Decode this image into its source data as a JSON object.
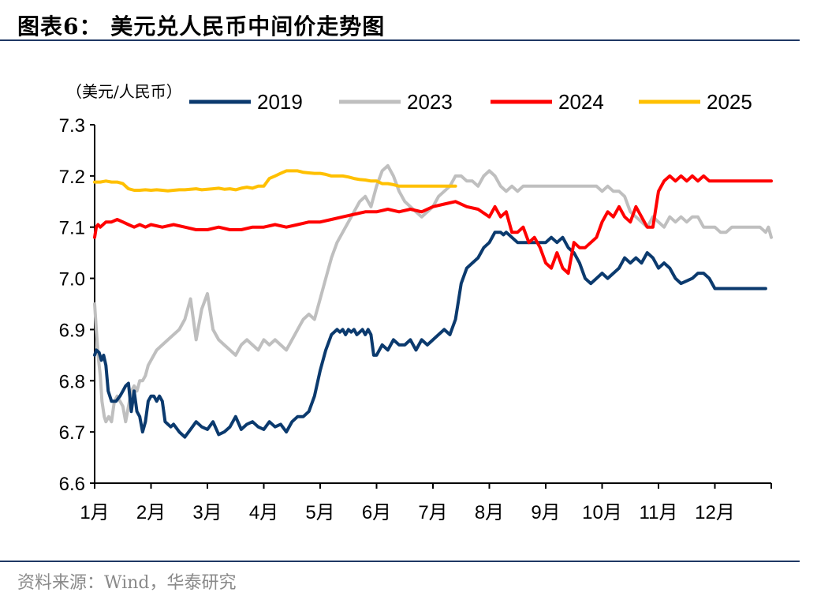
{
  "header": {
    "title": "图表6：   美元兑人民币中间价走势图"
  },
  "footer": {
    "source": "资料来源：Wind，华泰研究"
  },
  "colors": {
    "rule": "#1f3864",
    "axis": "#000000"
  },
  "chart_data": {
    "type": "line",
    "title": "图表6：   美元兑人民币中间价走势图",
    "ylabel": "（美元/人民币）",
    "ylim": [
      6.6,
      7.3
    ],
    "yticks": [
      "6.6",
      "6.7",
      "6.8",
      "6.9",
      "7.0",
      "7.1",
      "7.2",
      "7.3"
    ],
    "xlim": [
      0,
      12
    ],
    "xticks": [
      "1月",
      "2月",
      "3月",
      "4月",
      "5月",
      "6月",
      "7月",
      "8月",
      "9月",
      "10月",
      "11月",
      "12月"
    ],
    "legend": "top",
    "grid": false,
    "series": [
      {
        "name": "2019",
        "color": "#0b3a6e",
        "x": [
          0,
          0.03,
          0.08,
          0.12,
          0.16,
          0.2,
          0.24,
          0.3,
          0.38,
          0.45,
          0.5,
          0.55,
          0.6,
          0.65,
          0.7,
          0.75,
          0.8,
          0.85,
          0.9,
          0.95,
          1.0,
          1.05,
          1.1,
          1.15,
          1.2,
          1.25,
          1.3,
          1.35,
          1.4,
          1.5,
          1.6,
          1.7,
          1.8,
          1.9,
          2.0,
          2.1,
          2.2,
          2.3,
          2.4,
          2.5,
          2.6,
          2.7,
          2.8,
          2.9,
          3.0,
          3.1,
          3.2,
          3.3,
          3.4,
          3.5,
          3.6,
          3.7,
          3.8,
          3.9,
          4.0,
          4.1,
          4.2,
          4.3,
          4.35,
          4.4,
          4.45,
          4.5,
          4.55,
          4.6,
          4.65,
          4.7,
          4.75,
          4.8,
          4.85,
          4.9,
          4.95,
          5.0,
          5.1,
          5.2,
          5.3,
          5.4,
          5.5,
          5.6,
          5.7,
          5.8,
          5.9,
          6.0,
          6.1,
          6.2,
          6.3,
          6.4,
          6.5,
          6.6,
          6.7,
          6.8,
          6.9,
          7.0,
          7.1,
          7.15,
          7.2,
          7.25,
          7.3,
          7.35,
          7.4,
          7.5,
          7.6,
          7.7,
          7.8,
          7.9,
          8.0,
          8.1,
          8.2,
          8.3,
          8.4,
          8.5,
          8.6,
          8.7,
          8.8,
          8.9,
          9.0,
          9.1,
          9.2,
          9.3,
          9.4,
          9.5,
          9.6,
          9.7,
          9.8,
          9.9,
          10.0,
          10.1,
          10.2,
          10.3,
          10.4,
          10.5,
          10.6,
          10.7,
          10.8,
          10.9,
          11.0,
          11.1,
          11.2,
          11.3,
          11.4,
          11.5,
          11.6,
          11.7,
          11.8,
          11.9,
          11.95,
          12.0
        ],
        "values": [
          6.85,
          6.86,
          6.855,
          6.84,
          6.85,
          6.83,
          6.78,
          6.76,
          6.76,
          6.77,
          6.78,
          6.79,
          6.795,
          6.74,
          6.78,
          6.74,
          6.73,
          6.7,
          6.72,
          6.76,
          6.77,
          6.77,
          6.76,
          6.77,
          6.76,
          6.72,
          6.715,
          6.71,
          6.715,
          6.7,
          6.69,
          6.705,
          6.72,
          6.71,
          6.705,
          6.72,
          6.695,
          6.7,
          6.71,
          6.73,
          6.705,
          6.715,
          6.72,
          6.71,
          6.705,
          6.72,
          6.71,
          6.715,
          6.7,
          6.72,
          6.73,
          6.73,
          6.74,
          6.77,
          6.82,
          6.86,
          6.89,
          6.9,
          6.895,
          6.9,
          6.89,
          6.9,
          6.895,
          6.9,
          6.89,
          6.895,
          6.9,
          6.89,
          6.9,
          6.89,
          6.85,
          6.85,
          6.87,
          6.86,
          6.88,
          6.87,
          6.87,
          6.88,
          6.86,
          6.88,
          6.87,
          6.88,
          6.89,
          6.9,
          6.89,
          6.92,
          6.99,
          7.02,
          7.03,
          7.04,
          7.06,
          7.07,
          7.09,
          7.09,
          7.09,
          7.085,
          7.09,
          7.085,
          7.08,
          7.07,
          7.07,
          7.07,
          7.07,
          7.07,
          7.07,
          7.08,
          7.07,
          7.08,
          7.06,
          7.05,
          7.03,
          7.0,
          6.99,
          7.0,
          7.01,
          7.0,
          7.01,
          7.02,
          7.04,
          7.03,
          7.04,
          7.03,
          7.05,
          7.04,
          7.02,
          7.03,
          7.02,
          7.0,
          6.99,
          6.995,
          7.0,
          7.01,
          7.01,
          7.0,
          6.98,
          6.98,
          6.98,
          6.98,
          6.98,
          6.98,
          6.98,
          6.98,
          6.98,
          6.98,
          6.98,
          6.98
        ],
        "end_x": 11.9
      },
      {
        "name": "2023",
        "color": "#bfbfbf",
        "x": [
          0,
          0.03,
          0.07,
          0.1,
          0.13,
          0.17,
          0.2,
          0.25,
          0.3,
          0.35,
          0.4,
          0.45,
          0.5,
          0.55,
          0.6,
          0.65,
          0.7,
          0.75,
          0.8,
          0.85,
          0.9,
          0.95,
          1.0,
          1.1,
          1.2,
          1.3,
          1.4,
          1.5,
          1.6,
          1.7,
          1.8,
          1.9,
          2.0,
          2.1,
          2.2,
          2.3,
          2.4,
          2.5,
          2.6,
          2.7,
          2.8,
          2.9,
          3.0,
          3.1,
          3.2,
          3.3,
          3.4,
          3.5,
          3.6,
          3.7,
          3.8,
          3.9,
          4.0,
          4.1,
          4.2,
          4.3,
          4.4,
          4.5,
          4.6,
          4.7,
          4.8,
          4.9,
          5.0,
          5.1,
          5.2,
          5.3,
          5.4,
          5.5,
          5.6,
          5.7,
          5.8,
          5.9,
          6.0,
          6.1,
          6.2,
          6.3,
          6.4,
          6.5,
          6.6,
          6.7,
          6.8,
          6.9,
          7.0,
          7.1,
          7.2,
          7.3,
          7.4,
          7.5,
          7.6,
          7.7,
          7.8,
          7.9,
          8.0,
          8.1,
          8.2,
          8.3,
          8.4,
          8.5,
          8.6,
          8.7,
          8.8,
          8.9,
          9.0,
          9.1,
          9.2,
          9.3,
          9.4,
          9.5,
          9.6,
          9.7,
          9.8,
          9.9,
          10.0,
          10.1,
          10.2,
          10.3,
          10.4,
          10.5,
          10.6,
          10.7,
          10.8,
          10.9,
          11.0,
          11.1,
          11.2,
          11.3,
          11.4,
          11.5,
          11.6,
          11.7,
          11.8,
          11.9,
          11.95,
          12.0
        ],
        "values": [
          6.95,
          6.9,
          6.84,
          6.81,
          6.76,
          6.73,
          6.72,
          6.73,
          6.72,
          6.76,
          6.77,
          6.76,
          6.75,
          6.72,
          6.75,
          6.78,
          6.79,
          6.78,
          6.8,
          6.8,
          6.81,
          6.83,
          6.84,
          6.86,
          6.87,
          6.88,
          6.89,
          6.9,
          6.92,
          6.96,
          6.88,
          6.94,
          6.97,
          6.9,
          6.88,
          6.87,
          6.86,
          6.85,
          6.87,
          6.88,
          6.87,
          6.86,
          6.88,
          6.87,
          6.88,
          6.87,
          6.86,
          6.88,
          6.9,
          6.92,
          6.93,
          6.92,
          6.96,
          7.0,
          7.04,
          7.07,
          7.09,
          7.11,
          7.13,
          7.15,
          7.16,
          7.14,
          7.18,
          7.21,
          7.22,
          7.2,
          7.17,
          7.15,
          7.14,
          7.13,
          7.12,
          7.13,
          7.14,
          7.16,
          7.17,
          7.18,
          7.2,
          7.2,
          7.19,
          7.19,
          7.18,
          7.2,
          7.21,
          7.2,
          7.18,
          7.17,
          7.18,
          7.17,
          7.18,
          7.18,
          7.18,
          7.18,
          7.18,
          7.18,
          7.18,
          7.18,
          7.18,
          7.18,
          7.18,
          7.18,
          7.18,
          7.18,
          7.17,
          7.18,
          7.17,
          7.17,
          7.16,
          7.13,
          7.12,
          7.11,
          7.1,
          7.12,
          7.11,
          7.1,
          7.12,
          7.11,
          7.12,
          7.11,
          7.12,
          7.12,
          7.1,
          7.1,
          7.1,
          7.09,
          7.09,
          7.1,
          7.1,
          7.1,
          7.1,
          7.1,
          7.1,
          7.09,
          7.1,
          7.08
        ],
        "end_x": 12.0
      },
      {
        "name": "2024",
        "color": "#ff0000",
        "x": [
          0,
          0.03,
          0.06,
          0.1,
          0.2,
          0.3,
          0.4,
          0.5,
          0.6,
          0.7,
          0.8,
          0.9,
          1.0,
          1.2,
          1.4,
          1.6,
          1.8,
          2.0,
          2.2,
          2.4,
          2.6,
          2.8,
          3.0,
          3.2,
          3.4,
          3.6,
          3.8,
          4.0,
          4.2,
          4.4,
          4.6,
          4.8,
          5.0,
          5.2,
          5.4,
          5.6,
          5.8,
          6.0,
          6.2,
          6.4,
          6.6,
          6.8,
          7.0,
          7.1,
          7.2,
          7.3,
          7.4,
          7.5,
          7.6,
          7.7,
          7.8,
          7.9,
          8.0,
          8.1,
          8.2,
          8.3,
          8.4,
          8.5,
          8.6,
          8.7,
          8.8,
          8.9,
          9.0,
          9.1,
          9.2,
          9.3,
          9.4,
          9.5,
          9.6,
          9.7,
          9.8,
          9.9,
          10.0,
          10.1,
          10.2,
          10.3,
          10.4,
          10.5,
          10.6,
          10.7,
          10.8,
          10.9,
          11.0,
          11.2,
          11.4,
          11.6,
          11.8,
          11.9,
          12.0
        ],
        "values": [
          7.08,
          7.1,
          7.105,
          7.1,
          7.11,
          7.11,
          7.115,
          7.11,
          7.105,
          7.1,
          7.105,
          7.1,
          7.105,
          7.1,
          7.105,
          7.1,
          7.095,
          7.095,
          7.1,
          7.095,
          7.095,
          7.1,
          7.1,
          7.105,
          7.1,
          7.105,
          7.11,
          7.11,
          7.115,
          7.12,
          7.125,
          7.13,
          7.13,
          7.135,
          7.13,
          7.135,
          7.13,
          7.14,
          7.145,
          7.15,
          7.14,
          7.135,
          7.12,
          7.14,
          7.12,
          7.13,
          7.09,
          7.09,
          7.1,
          7.07,
          7.08,
          7.06,
          7.03,
          7.02,
          7.05,
          7.02,
          7.01,
          7.07,
          7.06,
          7.06,
          7.07,
          7.08,
          7.11,
          7.13,
          7.12,
          7.14,
          7.12,
          7.11,
          7.14,
          7.12,
          7.1,
          7.1,
          7.17,
          7.19,
          7.2,
          7.19,
          7.2,
          7.19,
          7.2,
          7.19,
          7.2,
          7.19,
          7.19,
          7.19,
          7.19,
          7.19,
          7.19,
          7.19,
          7.19
        ],
        "end_x": 12.0
      },
      {
        "name": "2025",
        "color": "#ffc000",
        "x": [
          0,
          0.1,
          0.2,
          0.3,
          0.4,
          0.5,
          0.6,
          0.7,
          0.8,
          0.9,
          1.0,
          1.1,
          1.2,
          1.3,
          1.4,
          1.5,
          1.6,
          1.7,
          1.8,
          1.9,
          2.0,
          2.1,
          2.2,
          2.3,
          2.4,
          2.5,
          2.6,
          2.7,
          2.8,
          2.9,
          3.0,
          3.1,
          3.2,
          3.3,
          3.4,
          3.5,
          3.6,
          3.7,
          3.8,
          3.9,
          4.0,
          4.1,
          4.2,
          4.3,
          4.4,
          4.5,
          4.6,
          4.7,
          4.8,
          4.9,
          5.0,
          5.1,
          5.2,
          5.3,
          5.4,
          5.5,
          5.6,
          5.7,
          5.8,
          5.9,
          6.0,
          6.1,
          6.2,
          6.3,
          6.4,
          6.5,
          6.6
        ],
        "values": [
          7.188,
          7.188,
          7.19,
          7.188,
          7.188,
          7.185,
          7.175,
          7.172,
          7.172,
          7.173,
          7.172,
          7.173,
          7.172,
          7.171,
          7.172,
          7.173,
          7.173,
          7.174,
          7.175,
          7.173,
          7.174,
          7.175,
          7.176,
          7.174,
          7.175,
          7.173,
          7.176,
          7.178,
          7.176,
          7.18,
          7.18,
          7.195,
          7.2,
          7.205,
          7.21,
          7.21,
          7.21,
          7.207,
          7.206,
          7.205,
          7.205,
          7.203,
          7.2,
          7.2,
          7.2,
          7.198,
          7.195,
          7.193,
          7.192,
          7.19,
          7.19,
          7.185,
          7.185,
          7.183,
          7.18,
          7.18,
          7.18,
          7.18,
          7.18,
          7.18,
          7.18,
          7.18,
          7.18,
          7.18,
          7.18,
          7.18,
          7.18
        ],
        "end_x": 6.45
      }
    ]
  }
}
